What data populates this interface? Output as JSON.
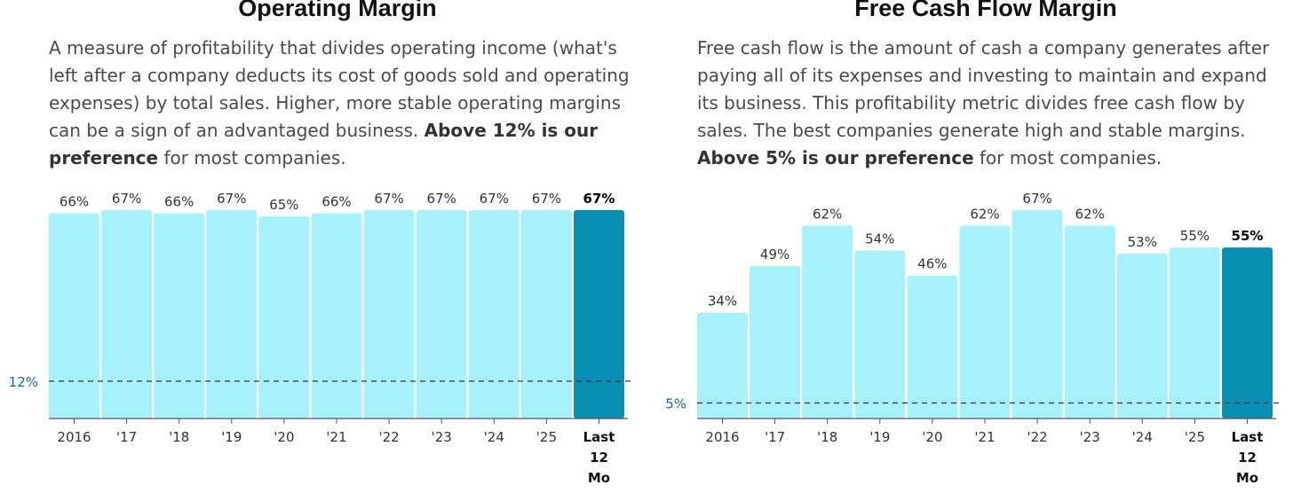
{
  "colors": {
    "bar": "#a6f1fb",
    "bar_last": "#0a8fb4",
    "reference_line": "#333333",
    "reference_label": "#1d6a86",
    "axis": "#555555"
  },
  "chart_data": [
    {
      "type": "bar",
      "title": "Operating Margin",
      "description": {
        "text": "A measure of profitability that divides operating income (what's left after a company deducts its cost of goods sold and operating expenses) by total sales. Higher, more stable operating margins can be a sign of an advantaged business.",
        "bold": "Above 12% is our preference",
        "tail": " for most companies."
      },
      "categories": [
        "2016",
        "'17",
        "'18",
        "'19",
        "'20",
        "'21",
        "'22",
        "'23",
        "'24",
        "'25",
        "Last 12 Mo"
      ],
      "values": [
        66,
        67,
        66,
        67,
        65,
        66,
        67,
        67,
        67,
        67,
        67
      ],
      "value_labels": [
        "66%",
        "67%",
        "66%",
        "67%",
        "65%",
        "66%",
        "67%",
        "67%",
        "67%",
        "67%",
        "67%"
      ],
      "reference": {
        "value": 12,
        "label": "12%"
      },
      "ylim": [
        0,
        67
      ],
      "xlabel": "",
      "ylabel": ""
    },
    {
      "type": "bar",
      "title": "Free Cash Flow Margin",
      "description": {
        "text": "Free cash flow is the amount of cash a company generates after paying all of its expenses and investing to maintain and expand its business. This profitability metric divides free cash flow by sales. The best companies generate high and stable margins.",
        "bold": "Above 5% is our preference",
        "tail": " for most companies."
      },
      "categories": [
        "2016",
        "'17",
        "'18",
        "'19",
        "'20",
        "'21",
        "'22",
        "'23",
        "'24",
        "'25",
        "Last 12 Mo"
      ],
      "values": [
        34,
        49,
        62,
        54,
        46,
        62,
        67,
        62,
        53,
        55,
        55
      ],
      "value_labels": [
        "34%",
        "49%",
        "62%",
        "54%",
        "46%",
        "62%",
        "67%",
        "62%",
        "53%",
        "55%",
        "55%"
      ],
      "reference": {
        "value": 5,
        "label": "5%"
      },
      "ylim": [
        0,
        67
      ],
      "xlabel": "",
      "ylabel": ""
    }
  ]
}
